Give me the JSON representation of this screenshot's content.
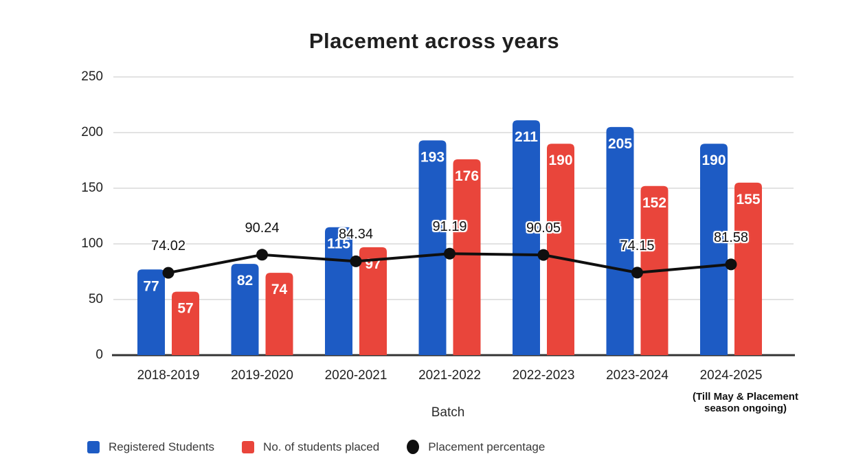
{
  "chart_data": {
    "type": "bar",
    "subtype": "grouped-bars-with-percentage-line",
    "title": "Placement across years",
    "xlabel": "Batch",
    "ylabel": "",
    "categories": [
      "2018-2019",
      "2019-2020",
      "2020-2021",
      "2021-2022",
      "2022-2023",
      "2023-2024",
      "2024-2025"
    ],
    "series": [
      {
        "name": "Registered Students",
        "type": "bar",
        "color": "#1d5bc4",
        "values": [
          77,
          82,
          115,
          193,
          211,
          205,
          190
        ]
      },
      {
        "name": "No. of students placed",
        "type": "bar",
        "color": "#e9453b",
        "values": [
          57,
          74,
          97,
          176,
          190,
          152,
          155
        ]
      },
      {
        "name": "Placement percentage",
        "type": "line",
        "color": "#0f0f0f",
        "values": [
          74.02,
          90.24,
          84.34,
          91.19,
          90.05,
          74.15,
          81.58
        ]
      }
    ],
    "ylim": [
      0,
      250
    ],
    "yticks": [
      0,
      50,
      100,
      150,
      200,
      250
    ],
    "grid": true,
    "legend_position": "bottom",
    "category_note": {
      "category": "2024-2025",
      "line1": "(Till May & Placement",
      "line2": "season ongoing)"
    }
  },
  "colors": {
    "registered_bar": "#1d5bc4",
    "placed_bar": "#e9453b",
    "percentage_line": "#0f0f0f",
    "gridline": "#e2e2e2",
    "axis_line": "#333333",
    "bar_label_text": "#ffffff"
  }
}
